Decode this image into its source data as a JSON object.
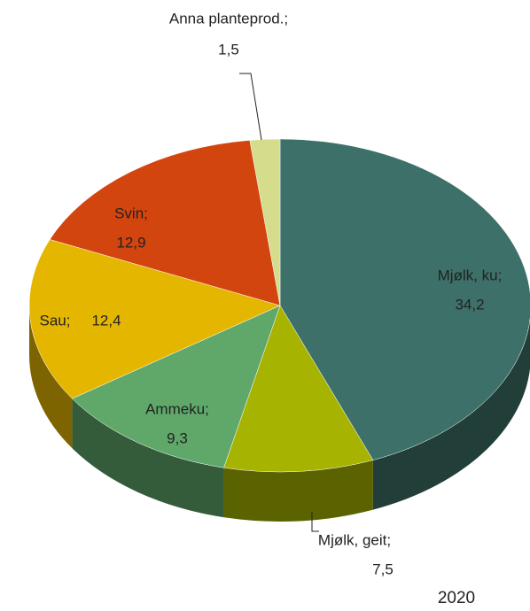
{
  "chart_data": {
    "type": "pie3d",
    "categories": [
      "Mjølk, ku;",
      "Mjølk, geit;",
      "Ammeku;",
      "Sau;",
      "Svin;",
      "Anna planteprod.;"
    ],
    "values": [
      34.2,
      7.5,
      9.3,
      12.4,
      12.9,
      1.5
    ],
    "value_labels": [
      "34,2",
      "7,5",
      "9,3",
      "12,4",
      "12,9",
      "1,5"
    ],
    "colors": [
      "#3d7068",
      "#a6b300",
      "#5fa86a",
      "#e5b600",
      "#d2450f",
      "#d5dc8c"
    ],
    "annotation": "2020"
  }
}
